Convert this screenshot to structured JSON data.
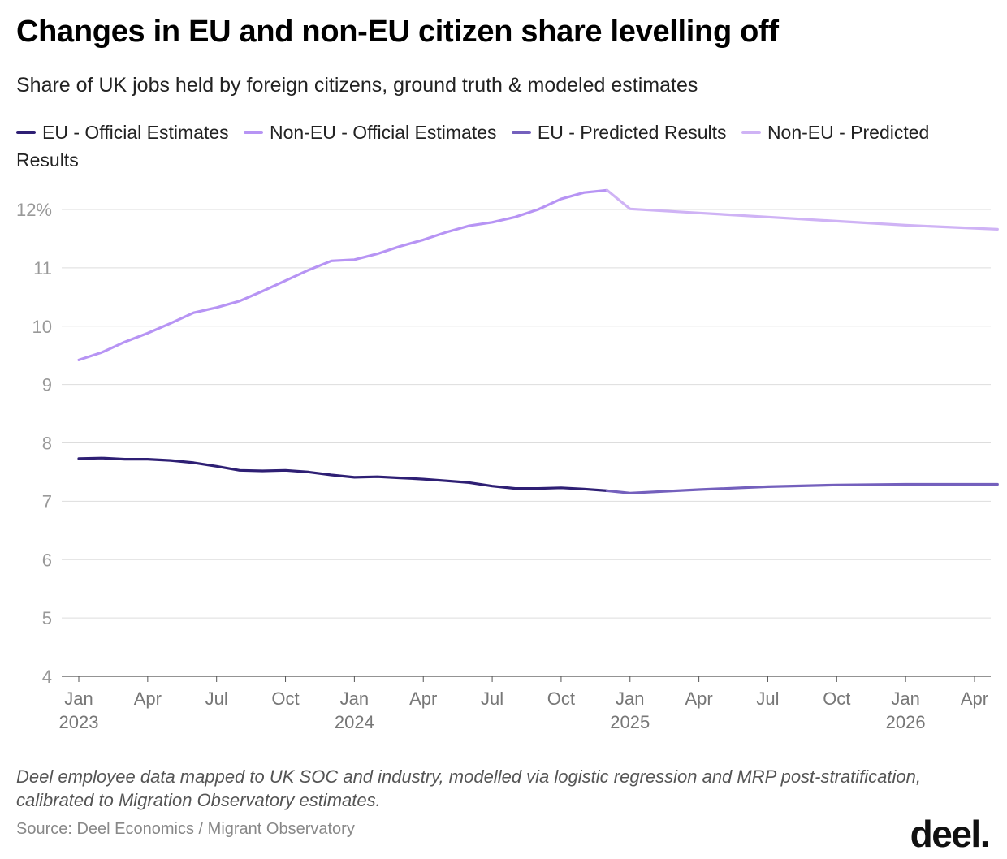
{
  "title": "Changes in EU and non-EU citizen share levelling off",
  "subtitle": "Share of UK jobs held by foreign citizens, ground truth & modeled estimates",
  "note": "Deel employee data mapped to UK SOC and industry, modelled via logistic regression and MRP post-stratification, calibrated to Migration Observatory estimates.",
  "source": "Source: Deel Economics / Migrant Observatory",
  "logo_text": "deel.",
  "colors": {
    "eu_official": "#2e1f74",
    "noneu_official": "#b794f4",
    "eu_predicted": "#7460bd",
    "noneu_predicted": "#cfb3f5",
    "grid": "#dddddd",
    "axis": "#555555"
  },
  "chart_data": {
    "type": "line",
    "y_unit": "%",
    "ylim": [
      4,
      12.5
    ],
    "y_ticks": [
      {
        "value": 12,
        "label": "12%"
      },
      {
        "value": 11,
        "label": "11"
      },
      {
        "value": 10,
        "label": "10"
      },
      {
        "value": 9,
        "label": "9"
      },
      {
        "value": 8,
        "label": "8"
      },
      {
        "value": 7,
        "label": "7"
      },
      {
        "value": 6,
        "label": "6"
      },
      {
        "value": 5,
        "label": "5"
      },
      {
        "value": 4,
        "label": "4"
      }
    ],
    "x_ticks": [
      {
        "date": "2023-01",
        "label": "Jan",
        "year": "2023"
      },
      {
        "date": "2023-04",
        "label": "Apr",
        "year": ""
      },
      {
        "date": "2023-07",
        "label": "Jul",
        "year": ""
      },
      {
        "date": "2023-10",
        "label": "Oct",
        "year": ""
      },
      {
        "date": "2024-01",
        "label": "Jan",
        "year": "2024"
      },
      {
        "date": "2024-04",
        "label": "Apr",
        "year": ""
      },
      {
        "date": "2024-07",
        "label": "Jul",
        "year": ""
      },
      {
        "date": "2024-10",
        "label": "Oct",
        "year": ""
      },
      {
        "date": "2025-01",
        "label": "Jan",
        "year": "2025"
      },
      {
        "date": "2025-04",
        "label": "Apr",
        "year": ""
      },
      {
        "date": "2025-07",
        "label": "Jul",
        "year": ""
      },
      {
        "date": "2025-10",
        "label": "Oct",
        "year": ""
      },
      {
        "date": "2026-01",
        "label": "Jan",
        "year": "2026"
      },
      {
        "date": "2026-04",
        "label": "Apr",
        "year": ""
      }
    ],
    "grid": true,
    "legend_position": "top-left",
    "series": [
      {
        "name": "EU - Official Estimates",
        "color_key": "eu_official",
        "points": [
          [
            "2023-01",
            7.73
          ],
          [
            "2023-02",
            7.74
          ],
          [
            "2023-03",
            7.72
          ],
          [
            "2023-04",
            7.72
          ],
          [
            "2023-05",
            7.7
          ],
          [
            "2023-06",
            7.66
          ],
          [
            "2023-07",
            7.6
          ],
          [
            "2023-08",
            7.53
          ],
          [
            "2023-09",
            7.52
          ],
          [
            "2023-10",
            7.53
          ],
          [
            "2023-11",
            7.5
          ],
          [
            "2023-12",
            7.45
          ],
          [
            "2024-01",
            7.41
          ],
          [
            "2024-02",
            7.42
          ],
          [
            "2024-03",
            7.4
          ],
          [
            "2024-04",
            7.38
          ],
          [
            "2024-05",
            7.35
          ],
          [
            "2024-06",
            7.32
          ],
          [
            "2024-07",
            7.26
          ],
          [
            "2024-08",
            7.22
          ],
          [
            "2024-09",
            7.22
          ],
          [
            "2024-10",
            7.23
          ],
          [
            "2024-11",
            7.21
          ],
          [
            "2024-12",
            7.18
          ]
        ]
      },
      {
        "name": "Non-EU - Official Estimates",
        "color_key": "noneu_official",
        "points": [
          [
            "2023-01",
            9.42
          ],
          [
            "2023-02",
            9.55
          ],
          [
            "2023-03",
            9.73
          ],
          [
            "2023-04",
            9.88
          ],
          [
            "2023-05",
            10.05
          ],
          [
            "2023-06",
            10.23
          ],
          [
            "2023-07",
            10.32
          ],
          [
            "2023-08",
            10.43
          ],
          [
            "2023-09",
            10.6
          ],
          [
            "2023-10",
            10.78
          ],
          [
            "2023-11",
            10.96
          ],
          [
            "2023-12",
            11.12
          ],
          [
            "2024-01",
            11.14
          ],
          [
            "2024-02",
            11.24
          ],
          [
            "2024-03",
            11.37
          ],
          [
            "2024-04",
            11.48
          ],
          [
            "2024-05",
            11.61
          ],
          [
            "2024-06",
            11.72
          ],
          [
            "2024-07",
            11.78
          ],
          [
            "2024-08",
            11.87
          ],
          [
            "2024-09",
            12.0
          ],
          [
            "2024-10",
            12.18
          ],
          [
            "2024-11",
            12.29
          ],
          [
            "2024-12",
            12.33
          ]
        ]
      },
      {
        "name": "EU - Predicted Results",
        "color_key": "eu_predicted",
        "points": [
          [
            "2024-12",
            7.18
          ],
          [
            "2025-01",
            7.14
          ],
          [
            "2025-04",
            7.2
          ],
          [
            "2025-07",
            7.25
          ],
          [
            "2025-10",
            7.28
          ],
          [
            "2026-01",
            7.29
          ],
          [
            "2026-05",
            7.29
          ]
        ]
      },
      {
        "name": "Non-EU - Predicted Results",
        "color_key": "noneu_predicted",
        "points": [
          [
            "2024-12",
            12.33
          ],
          [
            "2025-01",
            12.01
          ],
          [
            "2025-04",
            11.94
          ],
          [
            "2025-07",
            11.87
          ],
          [
            "2025-10",
            11.8
          ],
          [
            "2026-01",
            11.73
          ],
          [
            "2026-05",
            11.66
          ]
        ]
      }
    ]
  }
}
